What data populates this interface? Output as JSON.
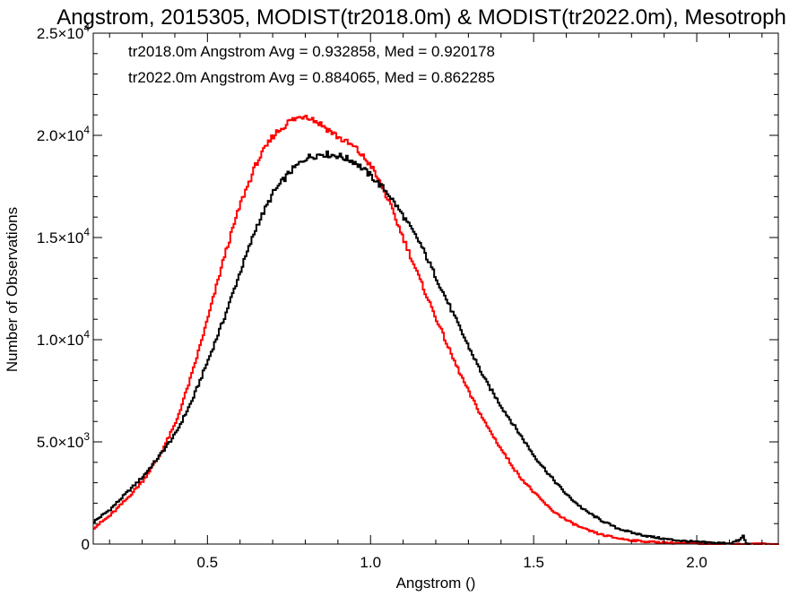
{
  "chart_data": {
    "type": "line",
    "title": "Angstrom, 2015305, MODIST(tr2018.0m) & MODIST(tr2022.0m), Mesotroph",
    "xlabel": "Angstrom ()",
    "ylabel": "Number of Observations",
    "xlim": [
      0.15,
      2.25
    ],
    "ylim": [
      0,
      25000
    ],
    "x_ticks": [
      0.5,
      1.0,
      1.5,
      2.0
    ],
    "x_tick_labels": [
      "0.5",
      "1.0",
      "1.5",
      "2.0"
    ],
    "y_ticks": [
      0,
      5000,
      10000,
      15000,
      20000,
      25000
    ],
    "y_tick_labels": [
      {
        "mant": "0",
        "exp": ""
      },
      {
        "mant": "5.0×10",
        "exp": "3"
      },
      {
        "mant": "1.0×10",
        "exp": "4"
      },
      {
        "mant": "1.5×10",
        "exp": "4"
      },
      {
        "mant": "2.0×10",
        "exp": "4"
      },
      {
        "mant": "2.5×10",
        "exp": "4"
      }
    ],
    "annotations": [
      {
        "text": "tr2018.0m Angstrom Avg = 0.932858, Med = 0.920178",
        "color": "#000000"
      },
      {
        "text": "tr2022.0m Angstrom Avg = 0.884065, Med = 0.862285",
        "color": "#ff0000"
      }
    ],
    "series": [
      {
        "color": "#000000",
        "x": [
          0.15,
          0.2,
          0.25,
          0.3,
          0.35,
          0.4,
          0.45,
          0.5,
          0.55,
          0.6,
          0.65,
          0.7,
          0.75,
          0.8,
          0.85,
          0.9,
          0.95,
          1.0,
          1.05,
          1.1,
          1.15,
          1.2,
          1.25,
          1.3,
          1.35,
          1.4,
          1.45,
          1.5,
          1.55,
          1.6,
          1.65,
          1.7,
          1.75,
          1.8,
          1.85,
          1.9,
          1.95,
          2.0,
          2.05,
          2.1,
          2.13,
          2.14,
          2.15,
          2.16
        ],
        "y": [
          1100,
          1700,
          2500,
          3300,
          4300,
          5400,
          7000,
          9000,
          11100,
          13400,
          15600,
          17200,
          18200,
          18900,
          19100,
          19000,
          18700,
          18000,
          17200,
          16000,
          14700,
          13000,
          11300,
          9600,
          8000,
          6700,
          5500,
          4300,
          3300,
          2400,
          1700,
          1200,
          800,
          550,
          380,
          250,
          160,
          100,
          60,
          40,
          200,
          400,
          0,
          0
        ]
      },
      {
        "color": "#ff0000",
        "x": [
          0.15,
          0.2,
          0.25,
          0.3,
          0.35,
          0.4,
          0.45,
          0.5,
          0.55,
          0.6,
          0.65,
          0.7,
          0.75,
          0.8,
          0.85,
          0.9,
          0.95,
          1.0,
          1.05,
          1.1,
          1.15,
          1.2,
          1.25,
          1.3,
          1.35,
          1.4,
          1.45,
          1.5,
          1.55,
          1.6,
          1.65,
          1.7,
          1.75,
          1.8,
          1.85,
          1.9,
          1.95,
          2.0,
          2.05,
          2.1,
          2.15,
          2.2,
          2.25
        ],
        "y": [
          800,
          1400,
          2200,
          3100,
          4300,
          5900,
          8300,
          11100,
          14100,
          16700,
          18700,
          20000,
          20700,
          21000,
          20500,
          19900,
          19400,
          18500,
          16900,
          14900,
          12900,
          11000,
          9100,
          7400,
          5900,
          4600,
          3400,
          2500,
          1700,
          1150,
          750,
          480,
          300,
          180,
          110,
          70,
          40,
          25,
          15,
          10,
          5,
          0,
          0
        ]
      }
    ],
    "legend": "none",
    "grid": false
  }
}
